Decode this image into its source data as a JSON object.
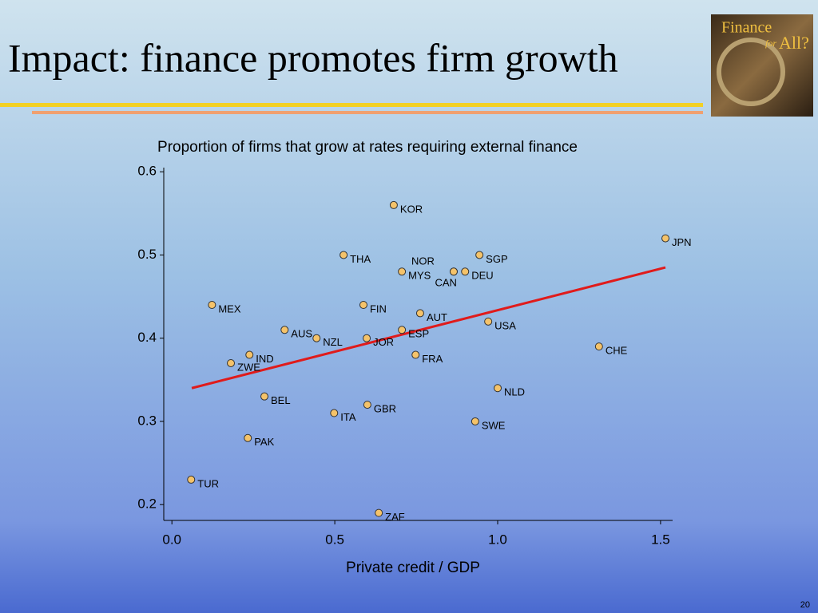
{
  "slide_title": "Impact: finance promotes firm growth",
  "logo": {
    "line1": "Finance",
    "line2": "for",
    "line3": "All?"
  },
  "page_number": "20",
  "chart_data": {
    "type": "scatter",
    "title": "Proportion of firms that grow at rates requiring external finance",
    "x_label": "Private credit / GDP",
    "labels": [
      "KOR",
      "JPN",
      "THA",
      "SGP",
      "MYS",
      "NOR",
      "CAN",
      "DEU",
      "MEX",
      "FIN",
      "AUT",
      "USA",
      "AUS",
      "ESP",
      "NZL",
      "JOR",
      "CHE",
      "IND",
      "FRA",
      "ZWE",
      "NLD",
      "BEL",
      "GBR",
      "ITA",
      "SWE",
      "PAK",
      "TUR",
      "ZAF"
    ],
    "x": [
      0.681,
      1.515,
      0.527,
      0.944,
      0.706,
      0.865,
      0.865,
      0.9,
      0.123,
      0.588,
      0.762,
      0.971,
      0.346,
      0.706,
      0.444,
      0.598,
      1.311,
      0.238,
      0.748,
      0.181,
      1.0,
      0.284,
      0.6,
      0.498,
      0.931,
      0.233,
      0.059,
      0.635
    ],
    "y": [
      0.56,
      0.52,
      0.5,
      0.5,
      0.48,
      0.48,
      0.48,
      0.48,
      0.44,
      0.44,
      0.43,
      0.42,
      0.41,
      0.41,
      0.4,
      0.4,
      0.39,
      0.38,
      0.38,
      0.37,
      0.34,
      0.33,
      0.32,
      0.31,
      0.3,
      0.28,
      0.23,
      0.19
    ],
    "color": "#f5c36a",
    "trendline": {
      "x": [
        0.061,
        1.515
      ],
      "y": [
        0.34,
        0.485
      ],
      "color": "#e01b1b"
    },
    "xlim": [
      -0.025,
      1.537
    ],
    "ylim": [
      0.181,
      0.605
    ],
    "xticks": [
      {
        "value": 0,
        "label": "0.0"
      },
      0.5,
      {
        "value": 1,
        "label": "1.0"
      },
      1.5
    ],
    "yticks": [
      0.2,
      0.3,
      0.4,
      0.5,
      0.6
    ]
  }
}
